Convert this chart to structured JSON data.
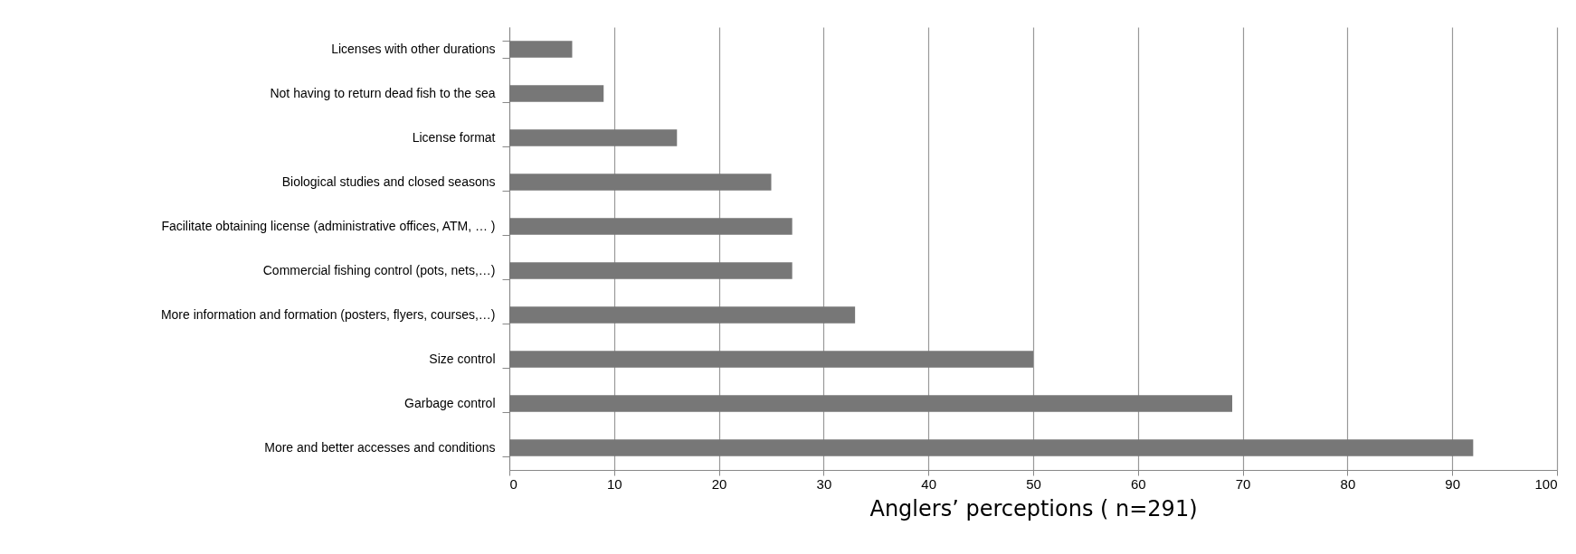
{
  "chart_data": {
    "type": "bar",
    "orientation": "horizontal",
    "xlabel": "Anglers’ perceptions ( n=291)",
    "categories": [
      "Licenses with other durations",
      "Not having to return dead fish to the sea",
      "License format",
      "Biological studies and closed seasons",
      "Facilitate obtaining license (administrative offices, ATM, … )",
      "Commercial fishing control (pots, nets,…)",
      "More information and formation (posters, flyers, courses,…)",
      "Size control",
      "Garbage control",
      "More and better accesses and conditions"
    ],
    "values": [
      6,
      9,
      16,
      25,
      27,
      27,
      33,
      50,
      69,
      92
    ],
    "color": "#777777",
    "xlim": [
      0,
      100
    ],
    "xticks": [
      0,
      10,
      20,
      30,
      40,
      50,
      60,
      70,
      80,
      90,
      100
    ],
    "grid": "x"
  }
}
